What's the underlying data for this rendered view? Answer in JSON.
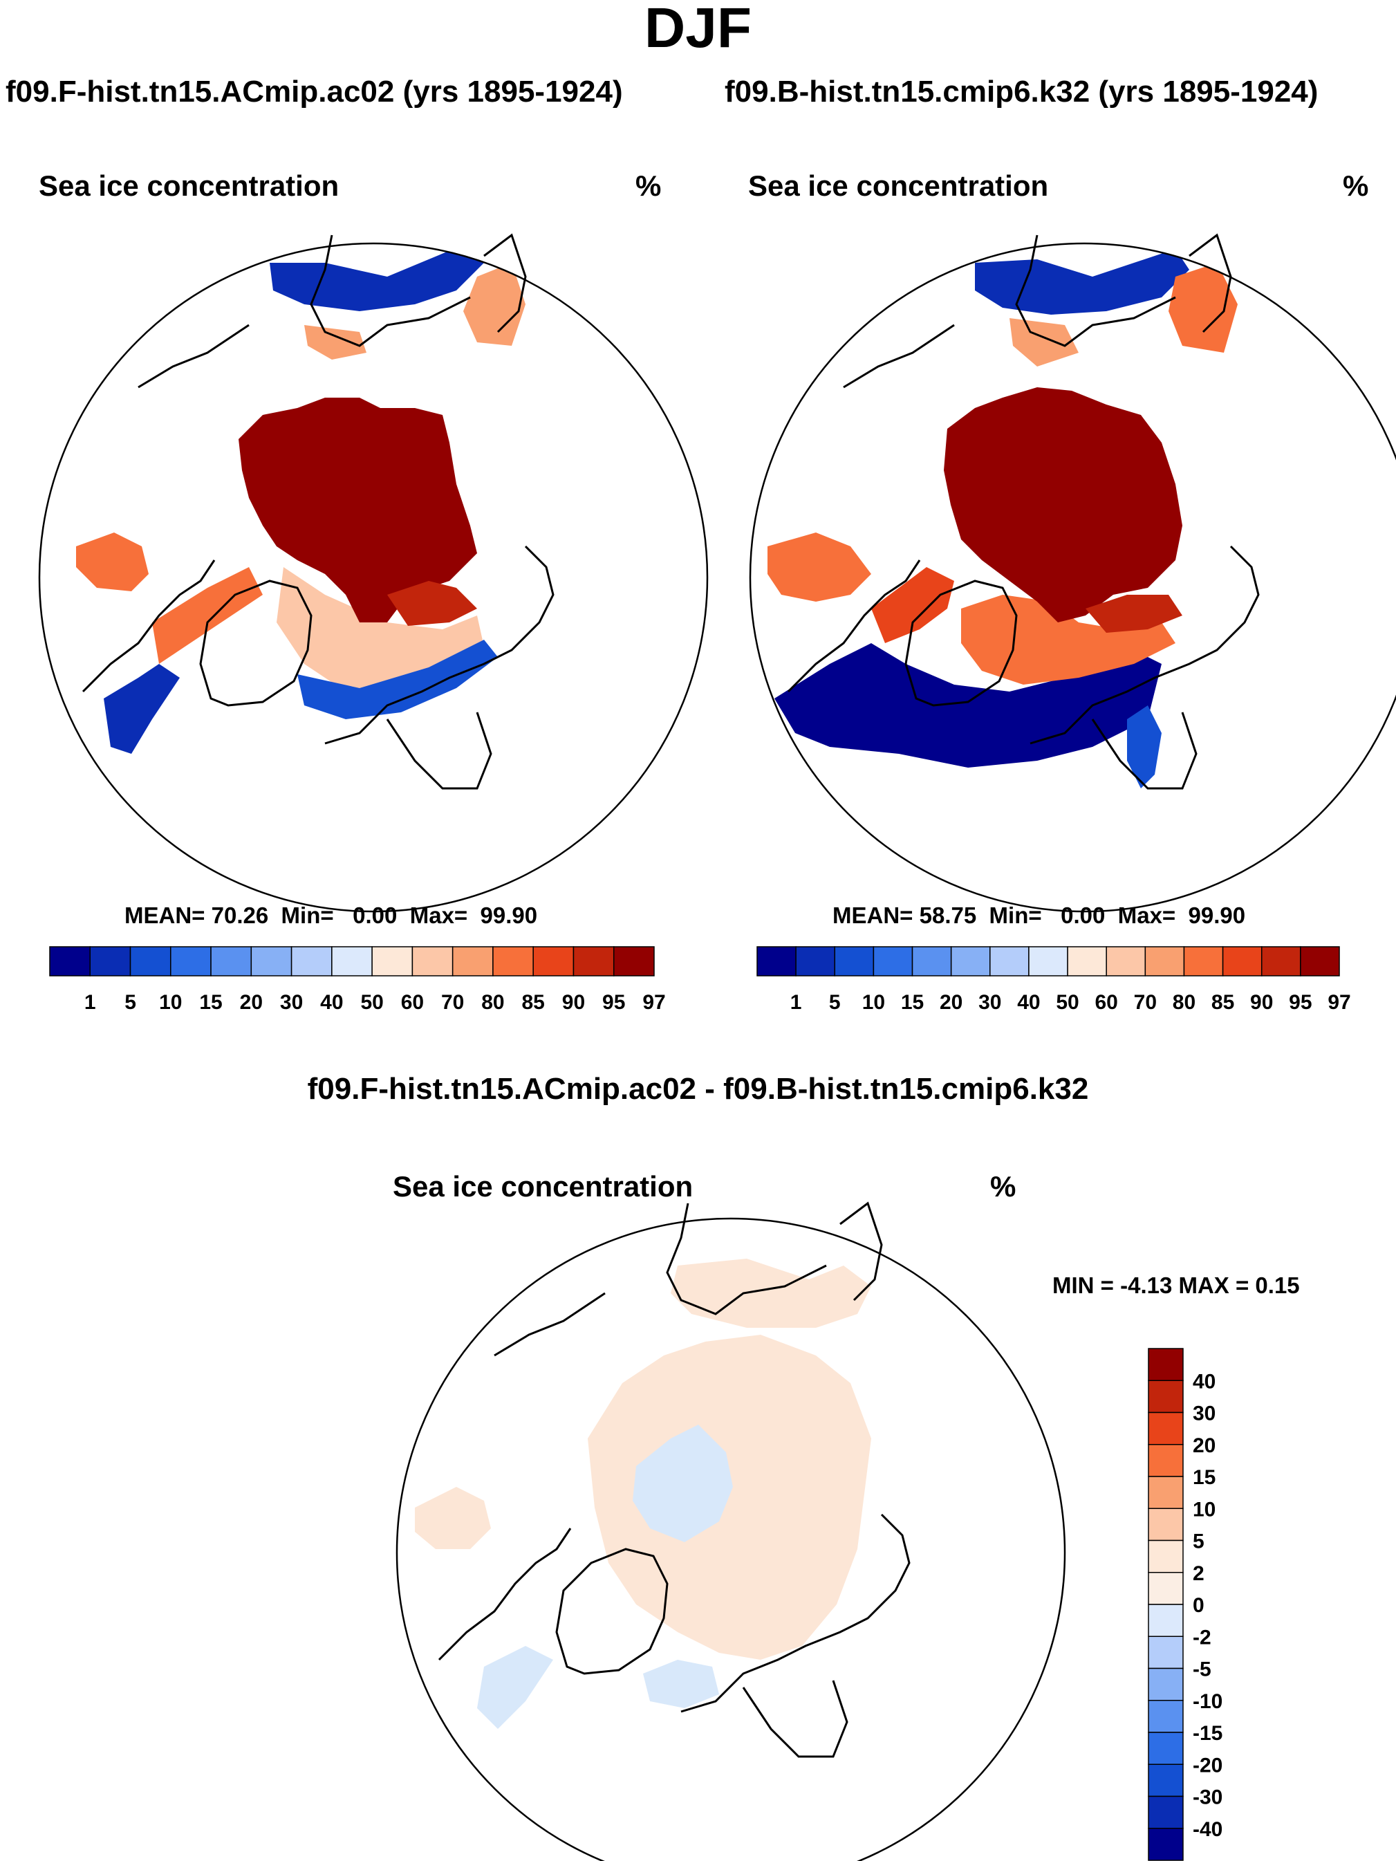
{
  "title": "DJF",
  "panels": [
    {
      "case_title": "f09.F-hist.tn15.ACmip.ac02 (yrs 1895-1924)",
      "variable": "Sea ice concentration",
      "units": "%",
      "stats": {
        "mean_label": "MEAN=",
        "mean": "70.26",
        "min_label": "Min=",
        "min": "0.00",
        "max_label": "Max=",
        "max": "99.90"
      }
    },
    {
      "case_title": "f09.B-hist.tn15.cmip6.k32 (yrs 1895-1924)",
      "variable": "Sea ice concentration",
      "units": "%",
      "stats": {
        "mean_label": "MEAN=",
        "mean": "58.75",
        "min_label": "Min=",
        "min": "0.00",
        "max_label": "Max=",
        "max": "99.90"
      }
    }
  ],
  "colorbar": {
    "levels": [
      "1",
      "5",
      "10",
      "15",
      "20",
      "30",
      "40",
      "50",
      "60",
      "70",
      "80",
      "85",
      "90",
      "95",
      "97"
    ],
    "colors": [
      "#00008c",
      "#0a2db4",
      "#1450d2",
      "#2d6ee6",
      "#5a91f0",
      "#87b0f5",
      "#b4cdfa",
      "#dce9fc",
      "#fde8d8",
      "#fcc7a8",
      "#f9a070",
      "#f7703a",
      "#e8441a",
      "#c2250c",
      "#920000"
    ]
  },
  "diff": {
    "title": "f09.F-hist.tn15.ACmip.ac02 - f09.B-hist.tn15.cmip6.k32",
    "variable": "Sea ice concentration",
    "units": "%",
    "stats_text": "MIN =  -4.13 MAX =   0.15",
    "colorbar": {
      "levels": [
        "40",
        "30",
        "20",
        "15",
        "10",
        "5",
        "2",
        "0",
        "-2",
        "-5",
        "-10",
        "-15",
        "-20",
        "-30",
        "-40"
      ],
      "colors": [
        "#920000",
        "#c2250c",
        "#e8441a",
        "#f7703a",
        "#f9a070",
        "#fcc7a8",
        "#fde8d8",
        "#fbeee4",
        "#dce9fc",
        "#b4cdfa",
        "#87b0f5",
        "#5a91f0",
        "#2d6ee6",
        "#1450d2",
        "#0a2db4",
        "#00008c"
      ]
    }
  },
  "field_colors": {
    "ice_core": "#920000",
    "ice_high": "#e8441a",
    "ice_mid": "#f7703a",
    "ice_low": "#fcc7a8",
    "open_water": "#00008c",
    "water_mid": "#1450d2",
    "diff_pos": "#fce6d6",
    "diff_neg": "#d8e8fa"
  }
}
